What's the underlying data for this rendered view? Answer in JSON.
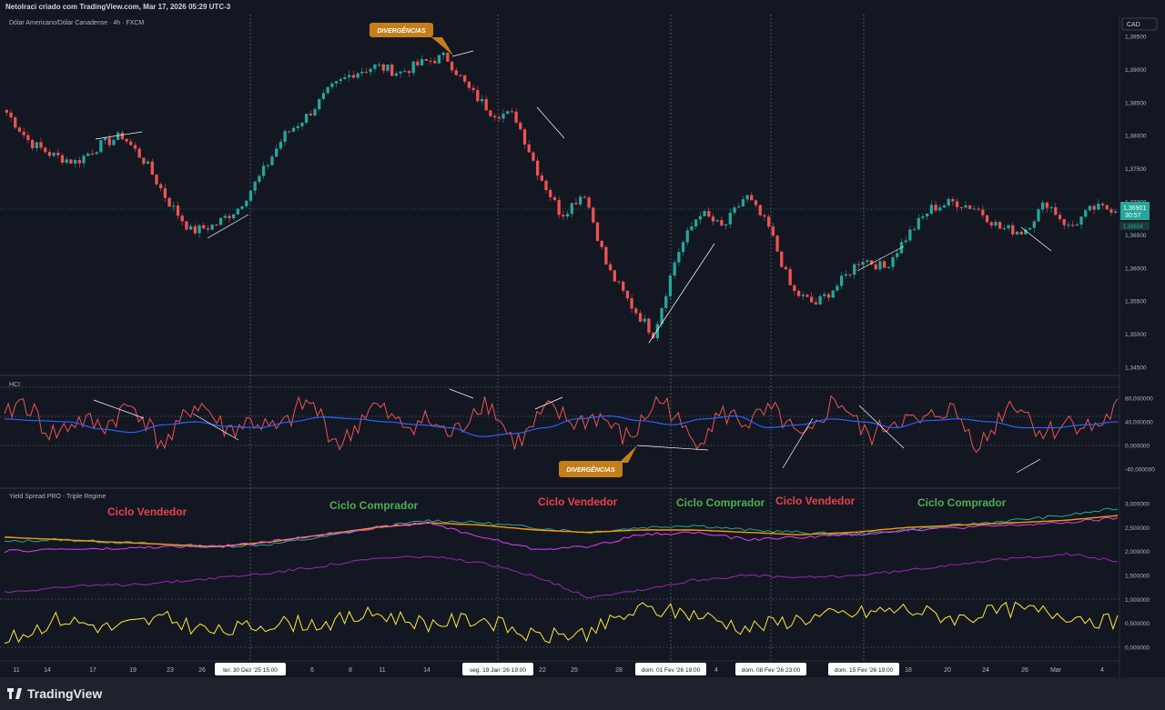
{
  "header": {
    "published_by": "Netolraci criado com TradingView.com, Mar 17, 2026 05:29 UTC-3",
    "symbol_title": "Dólar Americano/Dólar Canadense · 4h · FXCM",
    "currency_badge": "CAD"
  },
  "price_tag": {
    "value": "1,36901",
    "countdown": "30:57",
    "secondary": "1,36634"
  },
  "annotations": {
    "divergence_top": "DIVERGÊNCIAS",
    "divergence_bottom": "DIVERGÊNCIAS"
  },
  "indicators": {
    "hci_title": "HCI",
    "yield_title": "Yield Spread PRO - Triple Regime"
  },
  "cycle_labels": [
    {
      "text": "Ciclo Vendedor",
      "color": "#e8414f"
    },
    {
      "text": "Ciclo Comprador",
      "color": "#4caf50"
    },
    {
      "text": "Ciclo Vendedor",
      "color": "#e8414f"
    },
    {
      "text": "Ciclo Comprador",
      "color": "#4caf50"
    },
    {
      "text": "Ciclo Vendedor",
      "color": "#e8414f"
    },
    {
      "text": "Ciclo Comprador",
      "color": "#4caf50"
    }
  ],
  "time_axis": {
    "ticks": [
      "11",
      "14",
      "17",
      "19",
      "23",
      "26",
      "6",
      "8",
      "11",
      "14",
      "22",
      "25",
      "28",
      "4",
      "18",
      "20",
      "24",
      "26",
      "Mar",
      "4"
    ],
    "highlighted": [
      "ter. 30 Dez '25   15:00",
      "seg. 19 Jan '26   19:00",
      "dom. 01 Fev '26   19:00",
      "dom. 08 Fev '26   23:00",
      "dom. 15 Fev '26   19:00"
    ]
  },
  "colors": {
    "bull": "#26a69a",
    "bear": "#ef5350",
    "background": "#131722",
    "grid": "#2a2e39"
  },
  "chart_data": [
    {
      "type": "candlestick",
      "title": "Dólar Americano/Dólar Canadense · 4h · FXCM",
      "y_axis_ticks": [
        "1,39500",
        "1,39000",
        "1,38500",
        "1,38000",
        "1,37500",
        "1,37000",
        "1,36500",
        "1,36000",
        "1,35500",
        "1,35000",
        "1,34500"
      ],
      "ylim": [
        1.3435,
        1.397
      ],
      "x_range": [
        "Dec 10 '25",
        "Mar 17 '26"
      ],
      "last_price": 1.36901,
      "close_path": [
        [
          "Dec 10",
          1.3835
        ],
        [
          "Dec 11",
          1.379
        ],
        [
          "Dec 14",
          1.377
        ],
        [
          "Dec 16",
          1.376
        ],
        [
          "Dec 17",
          1.3785
        ],
        [
          "Dec 19",
          1.38
        ],
        [
          "Dec 21",
          1.376
        ],
        [
          "Dec 23",
          1.37
        ],
        [
          "Dec 25",
          1.3655
        ],
        [
          "Dec 26",
          1.3665
        ],
        [
          "Dec 30",
          1.369
        ],
        [
          "Jan 2",
          1.374
        ],
        [
          "Jan 5",
          1.38
        ],
        [
          "Jan 7",
          1.383
        ],
        [
          "Jan 9",
          1.387
        ],
        [
          "Jan 11",
          1.3895
        ],
        [
          "Jan 13",
          1.3905
        ],
        [
          "Jan 15",
          1.3895
        ],
        [
          "Jan 17",
          1.391
        ],
        [
          "Jan 18",
          1.392
        ],
        [
          "Jan 19",
          1.387
        ],
        [
          "Jan 21",
          1.3835
        ],
        [
          "Jan 22",
          1.383
        ],
        [
          "Jan 24",
          1.3745
        ],
        [
          "Jan 25",
          1.368
        ],
        [
          "Jan 27",
          1.3715
        ],
        [
          "Jan 28",
          1.36
        ],
        [
          "Jan 30",
          1.3545
        ],
        [
          "Jan 31",
          1.35
        ],
        [
          "Feb 2",
          1.362
        ],
        [
          "Feb 3",
          1.3685
        ],
        [
          "Feb 5",
          1.366
        ],
        [
          "Feb 6",
          1.371
        ],
        [
          "Feb 8",
          1.366
        ],
        [
          "Feb 10",
          1.3565
        ],
        [
          "Feb 12",
          1.3545
        ],
        [
          "Feb 13",
          1.3575
        ],
        [
          "Feb 15",
          1.3615
        ],
        [
          "Feb 17",
          1.36
        ],
        [
          "Feb 19",
          1.365
        ],
        [
          "Feb 21",
          1.369
        ],
        [
          "Feb 23",
          1.37
        ],
        [
          "Feb 25",
          1.369
        ],
        [
          "Feb 27",
          1.366
        ],
        [
          "Mar 1",
          1.3655
        ],
        [
          "Mar 3",
          1.37
        ],
        [
          "Mar 5",
          1.366
        ],
        [
          "Mar 9",
          1.369
        ],
        [
          "Mar 17",
          1.369
        ]
      ]
    },
    {
      "type": "line",
      "title": "HCI",
      "y_axis_ticks": [
        "80,000000",
        "40,000000",
        "0,000000",
        "-40,000000"
      ],
      "ylim": [
        -60,
        100
      ],
      "series": [
        {
          "name": "",
          "color": "#ef5350",
          "shape": "oscillating, range -40 to 90"
        },
        {
          "name": "",
          "color": "#2962ff",
          "shape": "smoothed",
          "points": [
            45,
            42,
            40,
            28,
            22,
            35,
            40,
            32,
            30,
            40,
            48,
            45,
            40,
            35,
            30,
            15,
            20,
            30,
            45,
            50,
            42,
            35,
            45,
            50,
            30,
            35,
            45,
            40,
            30,
            42,
            45,
            40,
            30,
            30,
            35,
            40
          ]
        }
      ]
    },
    {
      "type": "line",
      "title": "Yield Spread PRO - Triple Regime",
      "y_axis_ticks": [
        "3,000000",
        "2,500000",
        "2,000000",
        "1,500000",
        "1,000000",
        "0,500000",
        "0,000000"
      ],
      "ylim": [
        -0.1,
        3.2
      ],
      "series": [
        {
          "name": "",
          "color": "#26a69a",
          "points": [
            2.2,
            2.25,
            2.2,
            2.15,
            2.1,
            2.15,
            2.3,
            2.5,
            2.65,
            2.6,
            2.5,
            2.4,
            2.5,
            2.55,
            2.45,
            2.4,
            2.35,
            2.45,
            2.55,
            2.65,
            2.75,
            2.9
          ]
        },
        {
          "name": "",
          "color": "#ff9800",
          "points": [
            2.3,
            2.25,
            2.2,
            2.15,
            2.1,
            2.2,
            2.35,
            2.5,
            2.6,
            2.55,
            2.45,
            2.4,
            2.45,
            2.45,
            2.4,
            2.35,
            2.4,
            2.5,
            2.55,
            2.6,
            2.65,
            2.75
          ]
        },
        {
          "name": "",
          "color": "#e040fb",
          "points": [
            2.0,
            2.05,
            2.05,
            2.1,
            2.1,
            2.2,
            2.35,
            2.5,
            2.6,
            2.3,
            2.05,
            2.1,
            2.35,
            2.4,
            2.25,
            2.3,
            2.35,
            2.45,
            2.5,
            2.55,
            2.6,
            2.7
          ]
        },
        {
          "name": "",
          "color": "#9c27b0",
          "points": [
            1.15,
            1.25,
            1.3,
            1.35,
            1.45,
            1.55,
            1.7,
            1.85,
            1.9,
            1.75,
            1.5,
            1.05,
            1.2,
            1.4,
            1.5,
            1.45,
            1.5,
            1.6,
            1.75,
            1.85,
            1.95,
            1.8
          ]
        },
        {
          "name": "",
          "color": "#ffeb3b",
          "points": [
            0.1,
            0.6,
            0.4,
            0.6,
            0.3,
            0.5,
            0.5,
            0.7,
            0.5,
            0.6,
            0.2,
            0.3,
            0.8,
            0.7,
            0.4,
            0.6,
            0.7,
            0.8,
            0.6,
            0.8,
            0.7,
            0.5
          ]
        }
      ]
    }
  ]
}
